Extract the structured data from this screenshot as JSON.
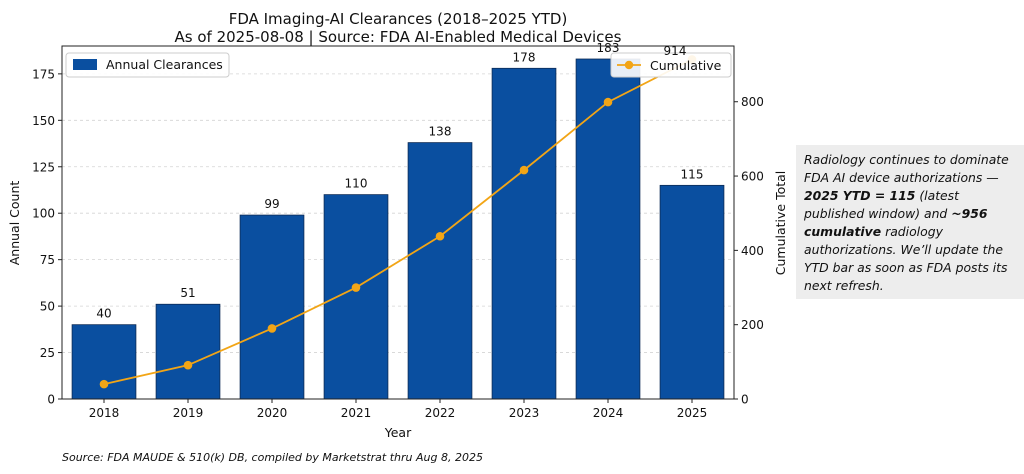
{
  "chart_data": {
    "type": "bar",
    "title": "FDA Imaging-AI Clearances (2018–2025 YTD)",
    "subtitle": "As of 2025-08-08  |  Source: FDA AI-Enabled Medical Devices",
    "xlabel": "Year",
    "ylabel": "Annual Count",
    "y2label": "Cumulative Total",
    "categories": [
      "2018",
      "2019",
      "2020",
      "2021",
      "2022",
      "2023",
      "2024",
      "2025"
    ],
    "ylim": [
      0,
      190
    ],
    "y2lim": [
      0,
      950
    ],
    "yticks": [
      0,
      25,
      50,
      75,
      100,
      125,
      150,
      175
    ],
    "y2ticks": [
      0,
      200,
      400,
      600,
      800
    ],
    "grid": true,
    "series": [
      {
        "name": "Annual Clearances",
        "type": "bar",
        "axis": "left",
        "color": "#0a4fa0",
        "values": [
          40,
          51,
          99,
          110,
          138,
          178,
          183,
          115
        ],
        "data_labels": [
          "40",
          "51",
          "99",
          "110",
          "138",
          "178",
          "183",
          "115"
        ]
      },
      {
        "name": "Cumulative",
        "type": "line",
        "axis": "right",
        "color": "#f2a516",
        "values": [
          40,
          91,
          190,
          300,
          438,
          616,
          799,
          914
        ],
        "end_label": "914"
      }
    ],
    "legend": [
      {
        "name": "Annual Clearances",
        "placement": "top-left"
      },
      {
        "name": "Cumulative",
        "placement": "top-right"
      }
    ]
  },
  "note": {
    "p1": "Radiology continues to dominate FDA AI device authorizations — ",
    "b1": "2025 YTD = 115",
    "p2": " (latest published window) and ",
    "b2": "~956 cumulative",
    "p3": " radiology authorizations. We’ll update the YTD bar as soon as FDA posts its next refresh."
  },
  "footer": "Source: FDA MAUDE & 510(k) DB, compiled by Marketstrat thru Aug 8, 2025"
}
